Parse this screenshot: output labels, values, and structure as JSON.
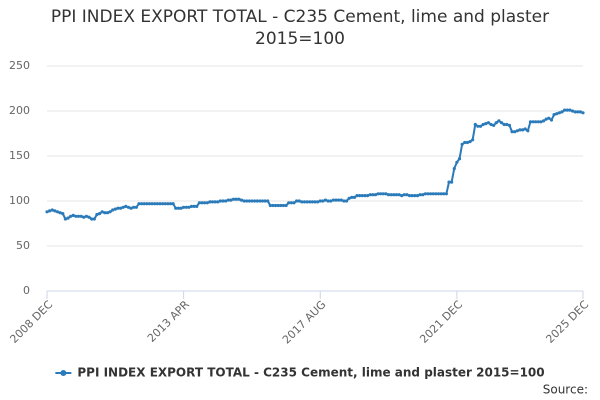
{
  "chart_data": {
    "type": "line",
    "title": "PPI INDEX EXPORT TOTAL - C235 Cement, lime and plaster 2015=100",
    "source": "Source:",
    "categories": [
      "2008 DEC",
      null,
      null,
      null,
      null,
      null,
      null,
      null,
      null,
      null,
      null,
      null,
      null,
      null,
      null,
      null,
      null,
      null,
      null,
      null,
      null,
      null,
      null,
      null,
      null,
      null,
      null,
      null,
      null,
      null,
      null,
      null,
      null,
      null,
      null,
      null,
      null,
      null,
      null,
      null,
      null,
      null,
      null,
      null,
      null,
      null,
      null,
      null,
      null,
      null,
      null,
      null,
      "2013 APR",
      null,
      null,
      null,
      null,
      null,
      null,
      null,
      null,
      null,
      null,
      null,
      null,
      null,
      null,
      null,
      null,
      null,
      null,
      null,
      null,
      null,
      null,
      null,
      null,
      null,
      null,
      null,
      null,
      null,
      null,
      null,
      null,
      null,
      null,
      null,
      null,
      null,
      null,
      null,
      null,
      null,
      null,
      null,
      null,
      null,
      null,
      null,
      null,
      null,
      null,
      null,
      "2017 AUG",
      null,
      null,
      null,
      null,
      null,
      null,
      null,
      null,
      null,
      null,
      null,
      null,
      null,
      null,
      null,
      null,
      null,
      null,
      null,
      null,
      null,
      null,
      null,
      null,
      null,
      null,
      null,
      null,
      null,
      null,
      null,
      null,
      null,
      null,
      null,
      null,
      null,
      null,
      null,
      null,
      null,
      null,
      null,
      null,
      null,
      null,
      null,
      null,
      null,
      null,
      null,
      "2021 DEC",
      null,
      null,
      null,
      null,
      null,
      null,
      null,
      null,
      null,
      null,
      null,
      null,
      null,
      null,
      null,
      null,
      null,
      null,
      null,
      null,
      null,
      null,
      null,
      null,
      null,
      null,
      null,
      null,
      null,
      null,
      null,
      null,
      null,
      null,
      null,
      null,
      null,
      null,
      null,
      null,
      null,
      null,
      null,
      null,
      null,
      null,
      null,
      "2025 DEC"
    ],
    "series": [
      {
        "name": "PPI INDEX EXPORT TOTAL - C235 Cement, lime and plaster 2015=100",
        "color": "#2b7bba",
        "values": [
          88,
          89,
          90,
          89,
          88,
          87,
          86,
          80,
          81,
          83,
          84,
          83,
          83,
          83,
          82,
          83,
          82,
          80,
          80,
          85,
          86,
          88,
          87,
          87,
          88,
          90,
          91,
          92,
          92,
          93,
          94,
          93,
          92,
          93,
          93,
          97,
          97,
          97,
          97,
          97,
          97,
          97,
          97,
          97,
          97,
          97,
          97,
          97,
          97,
          92,
          92,
          92,
          93,
          93,
          93,
          94,
          94,
          94,
          98,
          98,
          98,
          98,
          99,
          99,
          99,
          99,
          100,
          100,
          100,
          101,
          101,
          102,
          102,
          102,
          101,
          100,
          100,
          100,
          100,
          100,
          100,
          100,
          100,
          100,
          100,
          95,
          95,
          95,
          95,
          95,
          95,
          95,
          98,
          98,
          98,
          100,
          100,
          99,
          99,
          99,
          99,
          99,
          99,
          99,
          100,
          100,
          101,
          100,
          100,
          101,
          101,
          101,
          101,
          100,
          100,
          103,
          104,
          104,
          106,
          106,
          106,
          106,
          106,
          107,
          107,
          107,
          108,
          108,
          108,
          108,
          107,
          107,
          107,
          107,
          107,
          106,
          107,
          107,
          106,
          106,
          106,
          106,
          107,
          107,
          108,
          108,
          108,
          108,
          108,
          108,
          108,
          108,
          108,
          121,
          121,
          136,
          143,
          147,
          163,
          165,
          165,
          166,
          168,
          185,
          183,
          183,
          185,
          186,
          187,
          185,
          184,
          187,
          189,
          187,
          185,
          185,
          184,
          177,
          177,
          178,
          179,
          179,
          180,
          178,
          188,
          188,
          188,
          188,
          188,
          189,
          191,
          192,
          190,
          196,
          197,
          198,
          199,
          201,
          201,
          201,
          200,
          199,
          199,
          199,
          198
        ]
      }
    ],
    "ylim": [
      0,
      250
    ],
    "yticks": [
      0,
      50,
      100,
      150,
      200,
      250
    ],
    "grid": true,
    "legend": "bottom"
  }
}
